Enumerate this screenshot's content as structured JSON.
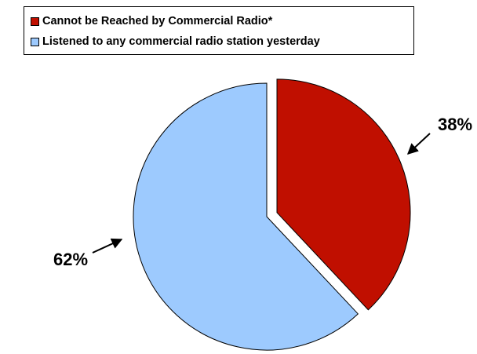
{
  "chart_data": {
    "type": "pie",
    "title": "",
    "legend_position": "top",
    "exploded": true,
    "slices": [
      {
        "label": "Cannot be Reached by Commercial Radio*",
        "value": 38,
        "value_label": "38%",
        "color": "#c00f00"
      },
      {
        "label": "Listened to any commercial radio station yesterday",
        "value": 62,
        "value_label": "62%",
        "color": "#9dcafe"
      }
    ]
  }
}
